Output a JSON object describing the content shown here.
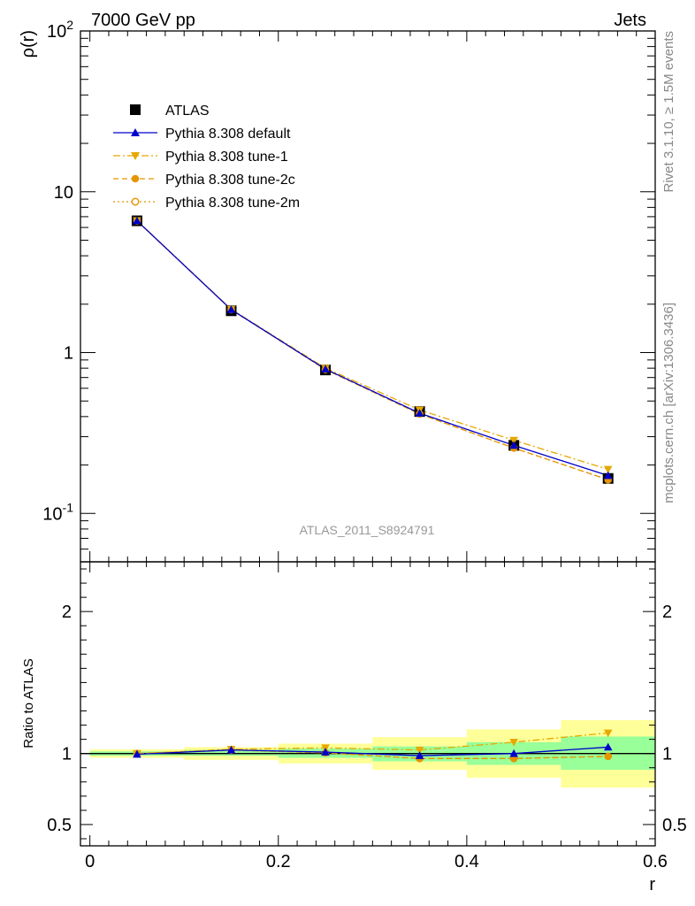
{
  "header": {
    "left_title": "7000 GeV pp",
    "right_title": "Jets"
  },
  "side_text": {
    "rivet": "Rivet 3.1.10, ≥ 1.5M events",
    "mcplots": "mcplots.cern.ch [arXiv:1306.3436]"
  },
  "analysis_label": "ATLAS_2011_S8924791",
  "chart_data": [
    {
      "type": "line",
      "panel": "main",
      "ylabel": "ρ(r)",
      "xlabel": "",
      "y_scale": "log",
      "ylim": [
        0.05,
        100
      ],
      "xlim": [
        -0.01,
        0.6
      ],
      "y_tick_labels": [
        "10^-1",
        "1",
        "10",
        "10^2"
      ],
      "legend_position": "top-left",
      "x": [
        0.05,
        0.15,
        0.25,
        0.35,
        0.45,
        0.55
      ],
      "series": [
        {
          "name": "ATLAS",
          "style": "data",
          "color": "#000000",
          "marker": "square",
          "values": [
            6.6,
            1.82,
            0.78,
            0.43,
            0.265,
            0.165
          ]
        },
        {
          "name": "Pythia 8.308 default",
          "style": "solid",
          "color": "#0000cc",
          "marker": "triangle-up",
          "values": [
            6.6,
            1.85,
            0.79,
            0.42,
            0.265,
            0.172
          ]
        },
        {
          "name": "Pythia 8.308 tune-1",
          "style": "dashdot",
          "color": "#e6a800",
          "marker": "triangle-down",
          "values": [
            6.62,
            1.86,
            0.8,
            0.44,
            0.285,
            0.188
          ]
        },
        {
          "name": "Pythia 8.308 tune-2c",
          "style": "dashed",
          "color": "#e69500",
          "marker": "circle-filled",
          "values": [
            6.6,
            1.85,
            0.785,
            0.415,
            0.255,
            0.162
          ]
        },
        {
          "name": "Pythia 8.308 tune-2m",
          "style": "dotted",
          "color": "#e69500",
          "marker": "circle-open",
          "values": [
            6.6,
            1.85,
            0.785,
            0.415,
            0.255,
            0.162
          ]
        }
      ]
    },
    {
      "type": "line",
      "panel": "ratio",
      "ylabel": "Ratio to ATLAS",
      "xlabel": "r",
      "ylim": [
        0.35,
        2.35
      ],
      "xlim": [
        -0.01,
        0.6
      ],
      "y_ticks": [
        0.5,
        1,
        2
      ],
      "y_tick_labels": [
        "0.5",
        "1",
        "2"
      ],
      "x_ticks": [
        0,
        0.2,
        0.4,
        0.6
      ],
      "x_tick_labels": [
        "0",
        "0.2",
        "0.4",
        "0.6"
      ],
      "reference_line": 1,
      "bands": {
        "edges": [
          0,
          0.1,
          0.2,
          0.3,
          0.4,
          0.5,
          0.6
        ],
        "stat": {
          "color": "#99ff99",
          "lo": [
            0.985,
            0.985,
            0.97,
            0.945,
            0.92,
            0.885
          ],
          "hi": [
            1.015,
            1.025,
            1.035,
            1.05,
            1.08,
            1.12
          ]
        },
        "total": {
          "color": "#ffff99",
          "lo": [
            0.97,
            0.955,
            0.93,
            0.885,
            0.83,
            0.76
          ],
          "hi": [
            1.03,
            1.045,
            1.07,
            1.115,
            1.17,
            1.235
          ]
        }
      },
      "x": [
        0.05,
        0.15,
        0.25,
        0.35,
        0.45,
        0.55
      ],
      "series": [
        {
          "name": "Pythia 8.308 default",
          "style": "solid",
          "color": "#0000cc",
          "marker": "triangle-up",
          "values": [
            0.995,
            1.025,
            1.01,
            0.985,
            1.0,
            1.045
          ]
        },
        {
          "name": "Pythia 8.308 tune-1",
          "style": "dashdot",
          "color": "#e6a800",
          "marker": "triangle-down",
          "values": [
            1.0,
            1.03,
            1.04,
            1.025,
            1.08,
            1.145
          ]
        },
        {
          "name": "Pythia 8.308 tune-2c",
          "style": "dashed",
          "color": "#e69500",
          "marker": "circle-filled",
          "values": [
            1.0,
            1.025,
            1.005,
            0.965,
            0.965,
            0.98
          ]
        },
        {
          "name": "Pythia 8.308 tune-2m",
          "style": "dotted",
          "color": "#e69500",
          "marker": "circle-open",
          "values": [
            1.0,
            1.025,
            1.005,
            0.965,
            0.965,
            0.98
          ]
        }
      ]
    }
  ]
}
